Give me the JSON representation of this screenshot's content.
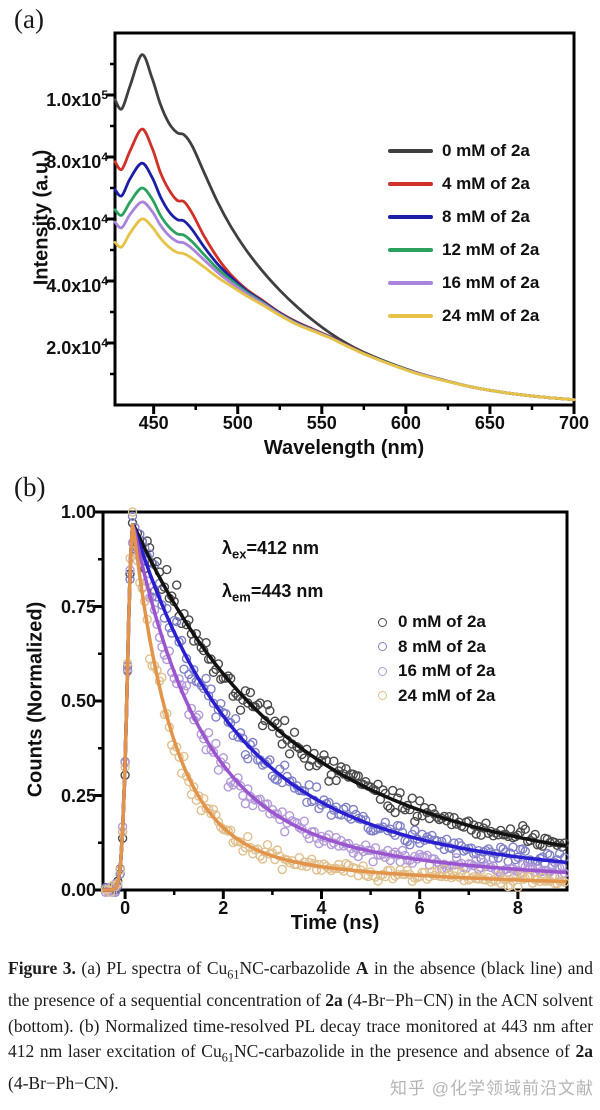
{
  "figure": {
    "panel_a_label": "(a)",
    "panel_b_label": "(b)"
  },
  "watermark": {
    "text": "知乎 @化学领域前沿文献"
  },
  "caption": {
    "segments": [
      {
        "t": "Figure 3.",
        "b": true
      },
      {
        "t": " (a) PL spectra of Cu"
      },
      {
        "t": "61",
        "sub": true
      },
      {
        "t": "NC-carbazolide "
      },
      {
        "t": "A",
        "b": true
      },
      {
        "t": " in the absence (black line) and the presence of a sequential concentration of "
      },
      {
        "t": "2a",
        "b": true
      },
      {
        "t": " (4-Br−Ph−CN) in the ACN solvent (bottom). (b) Normalized time-resolved PL decay trace monitored at 443 nm after 412 nm laser excitation of Cu"
      },
      {
        "t": "61",
        "sub": true
      },
      {
        "t": "NC-carbazolide in the presence and absence of "
      },
      {
        "t": "2a",
        "b": true
      },
      {
        "t": " (4-Br−Ph−CN)."
      }
    ]
  },
  "chart_data": [
    {
      "id": "pl-spectra",
      "panel": "a",
      "type": "line",
      "xlabel": "Wavelength (nm)",
      "ylabel": "Intensity (a.u.)",
      "xlim": [
        427,
        700
      ],
      "ylim_x1e4": [
        0,
        12
      ],
      "y_unit": "a.u. x 10^4",
      "x_ticks": {
        "major": [
          450,
          500,
          550,
          600,
          650,
          700
        ],
        "minor": [
          475,
          525,
          575,
          625,
          675
        ]
      },
      "y_ticks": {
        "major": [
          {
            "v": 2,
            "mant": "2.0x10",
            "exp": "4"
          },
          {
            "v": 4,
            "mant": "4.0x10",
            "exp": "4"
          },
          {
            "v": 6,
            "mant": "6.0x10",
            "exp": "4"
          },
          {
            "v": 8,
            "mant": "8.0x10",
            "exp": "4"
          },
          {
            "v": 10,
            "mant": "1.0x10",
            "exp": "5"
          }
        ],
        "minor": [
          1,
          3,
          5,
          7,
          9,
          11
        ]
      },
      "x": [
        427,
        431,
        436,
        443,
        449,
        454,
        459,
        464,
        468,
        473,
        480,
        488,
        496,
        505,
        515,
        525,
        535,
        545,
        555,
        565,
        575,
        590,
        605,
        620,
        640,
        660,
        680,
        700
      ],
      "series": [
        {
          "name": "0 mM of 2a",
          "color": "#3f3f3f",
          "values_x1e4": [
            9.85,
            9.55,
            10.3,
            11.3,
            10.55,
            9.7,
            9.1,
            8.78,
            8.72,
            8.35,
            7.5,
            6.55,
            5.75,
            5.0,
            4.3,
            3.7,
            3.18,
            2.72,
            2.32,
            1.98,
            1.7,
            1.36,
            1.07,
            0.84,
            0.57,
            0.39,
            0.26,
            0.17
          ]
        },
        {
          "name": "4 mM of 2a",
          "color": "#d03028",
          "values_x1e4": [
            7.85,
            7.6,
            8.2,
            8.9,
            8.3,
            7.5,
            6.95,
            6.6,
            6.56,
            6.18,
            5.45,
            4.75,
            4.2,
            3.74,
            3.36,
            2.98,
            2.68,
            2.44,
            2.2,
            1.93,
            1.67,
            1.34,
            1.05,
            0.83,
            0.57,
            0.39,
            0.26,
            0.17
          ]
        },
        {
          "name": "8 mM of 2a",
          "color": "#1b1fa8",
          "values_x1e4": [
            6.95,
            6.75,
            7.3,
            7.8,
            7.35,
            6.72,
            6.25,
            5.98,
            5.94,
            5.65,
            5.1,
            4.55,
            4.12,
            3.7,
            3.33,
            2.96,
            2.66,
            2.42,
            2.19,
            1.92,
            1.66,
            1.34,
            1.05,
            0.83,
            0.57,
            0.39,
            0.26,
            0.17
          ]
        },
        {
          "name": "12 mM of 2a",
          "color": "#2aa25e",
          "values_x1e4": [
            6.3,
            6.12,
            6.55,
            7.0,
            6.65,
            6.12,
            5.75,
            5.52,
            5.48,
            5.26,
            4.85,
            4.4,
            4.03,
            3.65,
            3.3,
            2.94,
            2.64,
            2.41,
            2.18,
            1.91,
            1.66,
            1.34,
            1.05,
            0.83,
            0.57,
            0.39,
            0.26,
            0.17
          ]
        },
        {
          "name": "16 mM of 2a",
          "color": "#a884dc",
          "values_x1e4": [
            5.9,
            5.72,
            6.15,
            6.55,
            6.25,
            5.8,
            5.47,
            5.27,
            5.23,
            5.04,
            4.68,
            4.28,
            3.95,
            3.6,
            3.27,
            2.92,
            2.62,
            2.4,
            2.17,
            1.91,
            1.65,
            1.33,
            1.05,
            0.83,
            0.57,
            0.39,
            0.26,
            0.17
          ]
        },
        {
          "name": "24 mM of 2a",
          "color": "#e6c247",
          "values_x1e4": [
            5.25,
            5.1,
            5.55,
            6.0,
            5.75,
            5.38,
            5.1,
            4.92,
            4.88,
            4.73,
            4.45,
            4.12,
            3.84,
            3.53,
            3.22,
            2.89,
            2.6,
            2.38,
            2.16,
            1.9,
            1.65,
            1.33,
            1.04,
            0.82,
            0.57,
            0.39,
            0.26,
            0.17
          ]
        }
      ],
      "legend_position": "right"
    },
    {
      "id": "pl-decay",
      "panel": "b",
      "type": "scatter+line",
      "xlabel": "Time (ns)",
      "ylabel": "Counts (Normalized)",
      "xlim": [
        -0.45,
        9.0
      ],
      "ylim": [
        0,
        1.0
      ],
      "x_ticks": {
        "major": [
          0,
          2,
          4,
          6,
          8
        ],
        "minor": [
          1,
          3,
          5,
          7
        ]
      },
      "y_ticks": {
        "major": [
          {
            "v": 0.0,
            "label": "0.00"
          },
          {
            "v": 0.25,
            "label": "0.25"
          },
          {
            "v": 0.5,
            "label": "0.50"
          },
          {
            "v": 0.75,
            "label": "0.75"
          },
          {
            "v": 1.0,
            "label": "1.00"
          }
        ],
        "minor": [
          0.125,
          0.375,
          0.625,
          0.875
        ]
      },
      "annotation": [
        {
          "sym": "λ",
          "sub": "ex",
          "rest": "=412 nm"
        },
        {
          "sym": "λ",
          "sub": "em",
          "rest": "=443 nm"
        }
      ],
      "decay_model": {
        "t_peak": 0.16,
        "peak_value": 0.97,
        "rise_sigma": 0.11
      },
      "series": [
        {
          "name": "0 mM of 2a",
          "line_color": "#121212",
          "marker_color": "#4a4a4a",
          "fit": {
            "A1": 0.73,
            "tau1": 2.8,
            "A2": 0.24,
            "tau2": 8.5
          }
        },
        {
          "name": "8 mM of 2a",
          "line_color": "#2a1fd0",
          "marker_color": "#8080c8",
          "fit": {
            "A1": 0.76,
            "tau1": 1.95,
            "A2": 0.21,
            "tau2": 7.5
          }
        },
        {
          "name": "16 mM of 2a",
          "line_color": "#9a55cf",
          "marker_color": "#b49ad8",
          "fit": {
            "A1": 0.81,
            "tau1": 1.35,
            "A2": 0.16,
            "tau2": 7.0
          }
        },
        {
          "name": "24 mM of 2a",
          "line_color": "#e2944a",
          "marker_color": "#e0c08e",
          "fit": {
            "A1": 0.86,
            "tau1": 0.8,
            "A2": 0.11,
            "tau2": 5.5
          }
        }
      ],
      "scatter": {
        "t_start": -0.4,
        "t_end": 8.95,
        "step": 0.05,
        "marker_radius": 4,
        "seed": 42
      }
    }
  ]
}
